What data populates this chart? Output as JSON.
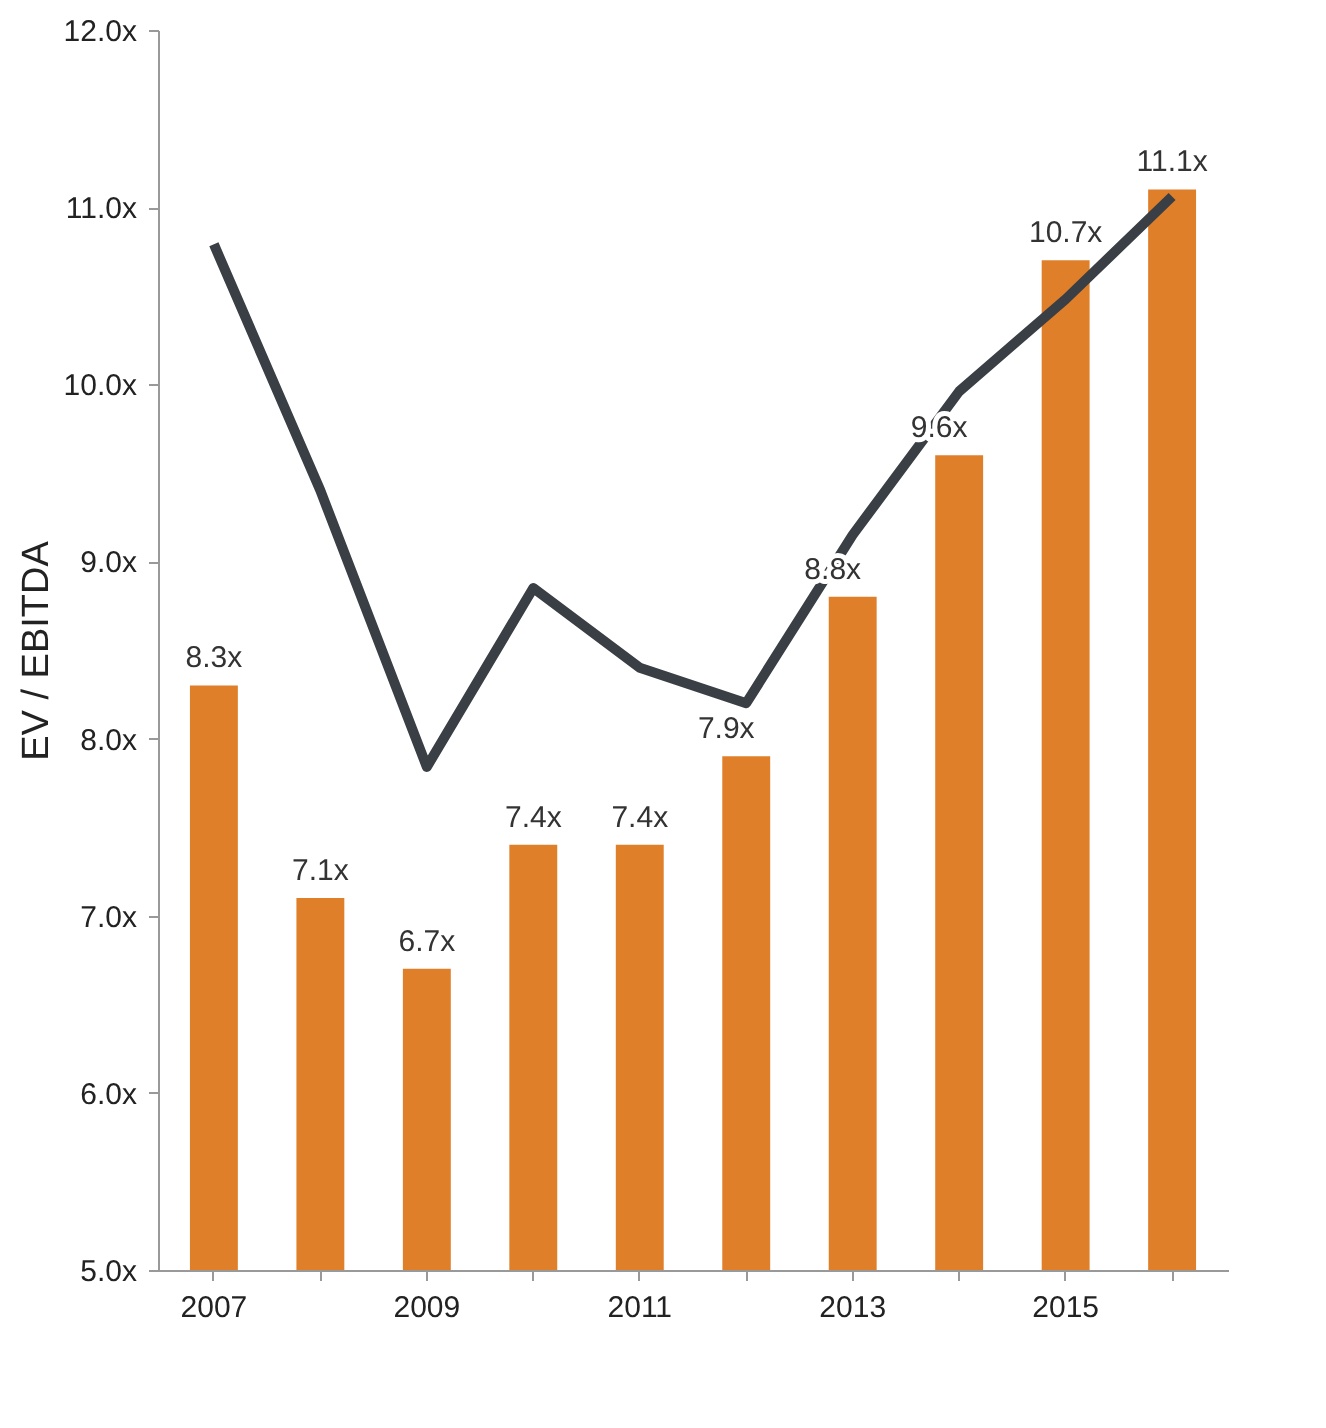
{
  "chart_data": {
    "type": "bar",
    "ylabel": "EV / EBITDA",
    "categories": [
      "2007",
      null,
      "2009",
      null,
      "2011",
      null,
      "2013",
      null,
      "2015",
      null
    ],
    "ylim": [
      5,
      12
    ],
    "yticks": [
      {
        "value": 5,
        "label": "5.0x"
      },
      {
        "value": 6,
        "label": "6.0x"
      },
      {
        "value": 7,
        "label": "7.0x"
      },
      {
        "value": 8,
        "label": "8.0x"
      },
      {
        "value": 9,
        "label": "9.0x"
      },
      {
        "value": 10,
        "label": "10.0x"
      },
      {
        "value": 11,
        "label": "11.0x"
      },
      {
        "value": 12,
        "label": "12.0x"
      }
    ],
    "grid": false,
    "series": [
      {
        "color": "#e07f2a",
        "values": [
          8.3,
          7.1,
          6.7,
          7.4,
          7.4,
          7.9,
          8.8,
          9.6,
          10.7,
          11.1
        ],
        "value_labels": [
          "8.3x",
          "7.1x",
          "6.7x",
          "7.4x",
          "7.4x",
          "7.9x",
          "8.8x",
          "9.6x",
          "10.7x",
          "11.1x"
        ]
      },
      {
        "type": "line",
        "color": "#3a3f45",
        "marker": "none",
        "line_style": "solid",
        "values": [
          10.79,
          9.4,
          7.84,
          8.85,
          8.4,
          8.2,
          9.15,
          9.96,
          10.48,
          11.06
        ]
      }
    ]
  }
}
